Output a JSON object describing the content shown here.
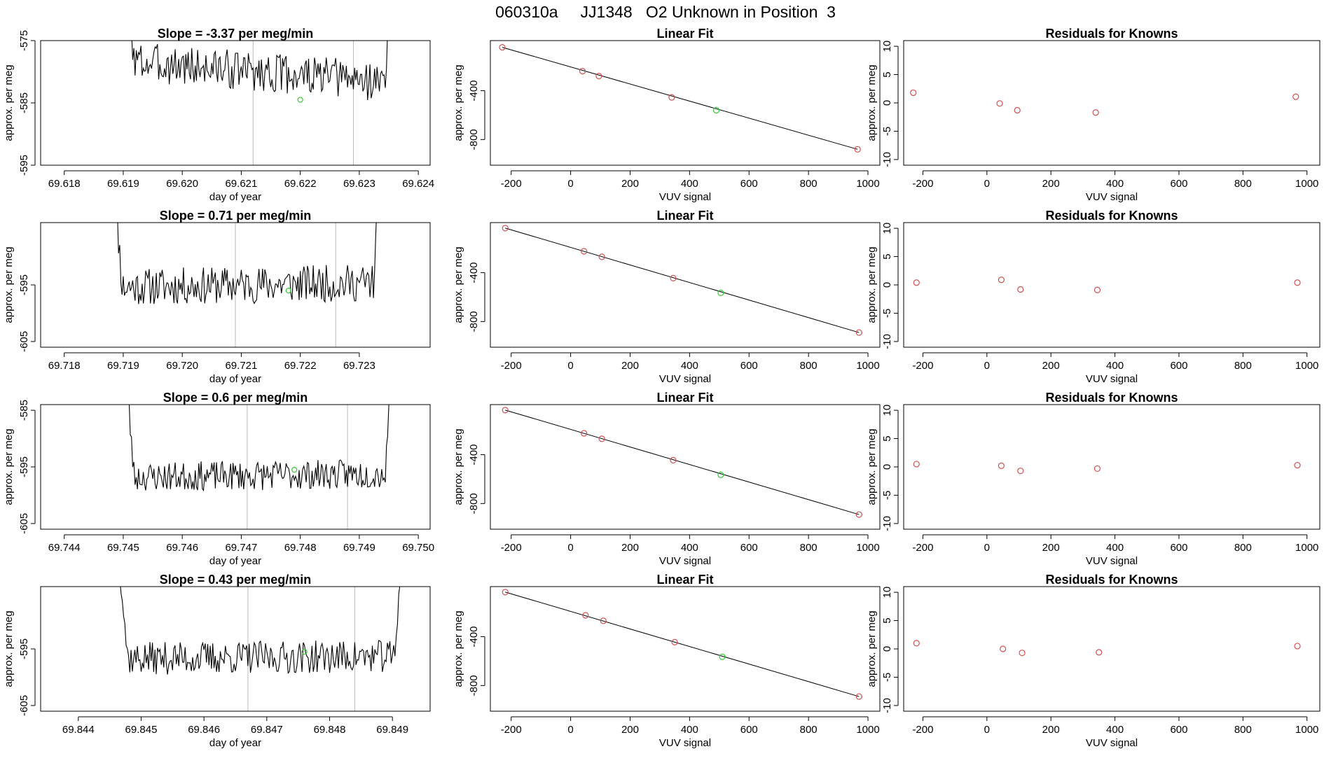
{
  "page": {
    "title": "060310a     JJ1348   O2 Unknown in Position  3"
  },
  "labels": {
    "slope_prefix": "Slope =  ",
    "slope_suffix": "  per meg/min",
    "time_xlabel": "day of year",
    "ylabel": "approx. per meg",
    "fit_title": "Linear Fit",
    "resid_title": "Residuals for Knowns",
    "vuv_xlabel": "VUV signal"
  },
  "colors": {
    "line": "#000000",
    "known_points": "#d05050",
    "unknown_point": "#33cc33",
    "marker_lines": "#bbbbbb"
  },
  "chart_data": [
    {
      "type": "line",
      "panel": "time-series",
      "row": 1,
      "title": "Slope =  -3.37  per meg/min",
      "xlabel": "day of year",
      "ylabel": "approx. per meg",
      "xlim": [
        69.6176,
        69.6242
      ],
      "ylim": [
        -595,
        -575
      ],
      "xticks": [
        "69.618",
        "69.619",
        "69.620",
        "69.621",
        "69.622",
        "69.623",
        "69.624"
      ],
      "yticks": [
        "-575",
        "-585",
        "-595"
      ],
      "x_start": 69.619,
      "x_end": 69.6236,
      "baseline": -580,
      "noise_amp": 3.2,
      "trend": -3.5,
      "seed": 3,
      "vlines": [
        69.6212,
        69.6229
      ],
      "unknown_point": [
        69.622,
        -584.5
      ]
    },
    {
      "type": "scatter",
      "panel": "linear-fit",
      "row": 1,
      "title": "Linear Fit",
      "xlabel": "VUV signal",
      "ylabel": "approx. per meg",
      "xlim": [
        -270,
        1040
      ],
      "ylim": [
        -1010,
        10
      ],
      "xticks": [
        "-200",
        "0",
        "200",
        "400",
        "600",
        "800",
        "1000"
      ],
      "yticks": [
        "-400",
        "-800"
      ],
      "knowns": [
        [
          -230,
          -45
        ],
        [
          40,
          -240
        ],
        [
          95,
          -280
        ],
        [
          340,
          -455
        ],
        [
          965,
          -880
        ]
      ],
      "unknown": [
        490,
        -560
      ],
      "fit_line": [
        [
          -230,
          -45
        ],
        [
          965,
          -880
        ]
      ]
    },
    {
      "type": "scatter",
      "panel": "residuals",
      "row": 1,
      "title": "Residuals for Knowns",
      "xlabel": "VUV signal",
      "ylabel": "approx. per meg",
      "xlim": [
        -260,
        1040
      ],
      "ylim": [
        -11,
        11
      ],
      "xticks": [
        "-200",
        "0",
        "200",
        "400",
        "600",
        "800",
        "1000"
      ],
      "yticks": [
        "10",
        "5",
        "0",
        "-5",
        "-10"
      ],
      "points": [
        [
          -230,
          1.8
        ],
        [
          40,
          -0.1
        ],
        [
          95,
          -1.3
        ],
        [
          340,
          -1.7
        ],
        [
          965,
          1.1
        ]
      ]
    },
    {
      "type": "line",
      "panel": "time-series",
      "row": 2,
      "title": "Slope =  0.71  per meg/min",
      "xlabel": "day of year",
      "ylabel": "approx. per meg",
      "xlim": [
        69.7176,
        69.7242
      ],
      "ylim": [
        -606,
        -584
      ],
      "xticks": [
        "69.718",
        "69.719",
        "69.720",
        "69.721",
        "69.722",
        "69.723"
      ],
      "yticks": [
        "-595",
        "-605"
      ],
      "x_start": 69.7188,
      "x_end": 69.7234,
      "baseline": -595,
      "noise_amp": 3.3,
      "trend": 0.8,
      "seed": 11,
      "vlines": [
        69.7209,
        69.7226
      ],
      "unknown_point": [
        69.7218,
        -596
      ]
    },
    {
      "type": "scatter",
      "panel": "linear-fit",
      "row": 2,
      "title": "Linear Fit",
      "xlabel": "VUV signal",
      "ylabel": "approx. per meg",
      "xlim": [
        -270,
        1040
      ],
      "ylim": [
        -1010,
        10
      ],
      "xticks": [
        "-200",
        "0",
        "200",
        "400",
        "600",
        "800",
        "1000"
      ],
      "yticks": [
        "-400",
        "-800"
      ],
      "knowns": [
        [
          -220,
          -35
        ],
        [
          45,
          -225
        ],
        [
          105,
          -270
        ],
        [
          345,
          -445
        ],
        [
          970,
          -890
        ]
      ],
      "unknown": [
        505,
        -565
      ],
      "fit_line": [
        [
          -220,
          -35
        ],
        [
          970,
          -890
        ]
      ]
    },
    {
      "type": "scatter",
      "panel": "residuals",
      "row": 2,
      "title": "Residuals for Knowns",
      "xlabel": "VUV signal",
      "ylabel": "approx. per meg",
      "xlim": [
        -260,
        1040
      ],
      "ylim": [
        -11,
        11
      ],
      "xticks": [
        "-200",
        "0",
        "200",
        "400",
        "600",
        "800",
        "1000"
      ],
      "yticks": [
        "10",
        "5",
        "0",
        "-5",
        "-10"
      ],
      "points": [
        [
          -220,
          0.4
        ],
        [
          45,
          0.9
        ],
        [
          105,
          -0.8
        ],
        [
          345,
          -0.9
        ],
        [
          970,
          0.4
        ]
      ]
    },
    {
      "type": "line",
      "panel": "time-series",
      "row": 3,
      "title": "Slope =  0.6  per meg/min",
      "xlabel": "day of year",
      "ylabel": "approx. per meg",
      "xlim": [
        69.7436,
        69.7502
      ],
      "ylim": [
        -606,
        -584
      ],
      "xticks": [
        "69.744",
        "69.745",
        "69.746",
        "69.747",
        "69.748",
        "69.749",
        "69.750"
      ],
      "yticks": [
        "-585",
        "-595",
        "-605"
      ],
      "x_start": 69.745,
      "x_end": 69.7496,
      "baseline": -596.5,
      "noise_amp": 2.6,
      "trend": 0.6,
      "seed": 23,
      "vlines": [
        69.7471,
        69.7488
      ],
      "unknown_point": [
        69.7479,
        -595.5
      ]
    },
    {
      "type": "scatter",
      "panel": "linear-fit",
      "row": 3,
      "title": "Linear Fit",
      "xlabel": "VUV signal",
      "ylabel": "approx. per meg",
      "xlim": [
        -270,
        1040
      ],
      "ylim": [
        -1010,
        10
      ],
      "xticks": [
        "-200",
        "0",
        "200",
        "400",
        "600",
        "800",
        "1000"
      ],
      "yticks": [
        "-400",
        "-800"
      ],
      "knowns": [
        [
          -220,
          -35
        ],
        [
          45,
          -225
        ],
        [
          105,
          -270
        ],
        [
          345,
          -445
        ],
        [
          970,
          -890
        ]
      ],
      "unknown": [
        505,
        -565
      ],
      "fit_line": [
        [
          -220,
          -35
        ],
        [
          970,
          -890
        ]
      ]
    },
    {
      "type": "scatter",
      "panel": "residuals",
      "row": 3,
      "title": "Residuals for Knowns",
      "xlabel": "VUV signal",
      "ylabel": "approx. per meg",
      "xlim": [
        -260,
        1040
      ],
      "ylim": [
        -11,
        11
      ],
      "xticks": [
        "-200",
        "0",
        "200",
        "400",
        "600",
        "800",
        "1000"
      ],
      "yticks": [
        "10",
        "5",
        "0",
        "-5",
        "-10"
      ],
      "points": [
        [
          -220,
          0.5
        ],
        [
          45,
          0.2
        ],
        [
          105,
          -0.7
        ],
        [
          345,
          -0.3
        ],
        [
          970,
          0.3
        ]
      ]
    },
    {
      "type": "line",
      "panel": "time-series",
      "row": 4,
      "title": "Slope =  0.43  per meg/min",
      "xlabel": "day of year",
      "ylabel": "approx. per meg",
      "xlim": [
        69.8434,
        69.8496
      ],
      "ylim": [
        -606,
        -584
      ],
      "xticks": [
        "69.844",
        "69.845",
        "69.846",
        "69.847",
        "69.848",
        "69.849"
      ],
      "yticks": [
        "-595",
        "-605"
      ],
      "x_start": 69.8446,
      "x_end": 69.8492,
      "baseline": -596.5,
      "noise_amp": 2.9,
      "trend": 0.4,
      "seed": 37,
      "vlines": [
        69.8467,
        69.8484
      ],
      "unknown_point": [
        69.8476,
        -595.5
      ]
    },
    {
      "type": "scatter",
      "panel": "linear-fit",
      "row": 4,
      "title": "Linear Fit",
      "xlabel": "VUV signal",
      "ylabel": "approx. per meg",
      "xlim": [
        -270,
        1040
      ],
      "ylim": [
        -1010,
        10
      ],
      "xticks": [
        "-200",
        "0",
        "200",
        "400",
        "600",
        "800",
        "1000"
      ],
      "yticks": [
        "-400",
        "-800"
      ],
      "knowns": [
        [
          -220,
          -35
        ],
        [
          50,
          -225
        ],
        [
          110,
          -270
        ],
        [
          350,
          -445
        ],
        [
          970,
          -890
        ]
      ],
      "unknown": [
        510,
        -565
      ],
      "fit_line": [
        [
          -220,
          -35
        ],
        [
          970,
          -890
        ]
      ]
    },
    {
      "type": "scatter",
      "panel": "residuals",
      "row": 4,
      "title": "Residuals for Knowns",
      "xlabel": "VUV signal",
      "ylabel": "approx. per meg",
      "xlim": [
        -260,
        1040
      ],
      "ylim": [
        -11,
        11
      ],
      "xticks": [
        "-200",
        "0",
        "200",
        "400",
        "600",
        "800",
        "1000"
      ],
      "yticks": [
        "10",
        "5",
        "0",
        "-5",
        "-10"
      ],
      "points": [
        [
          -220,
          1.0
        ],
        [
          50,
          0.0
        ],
        [
          110,
          -0.7
        ],
        [
          350,
          -0.6
        ],
        [
          970,
          0.5
        ]
      ]
    }
  ]
}
